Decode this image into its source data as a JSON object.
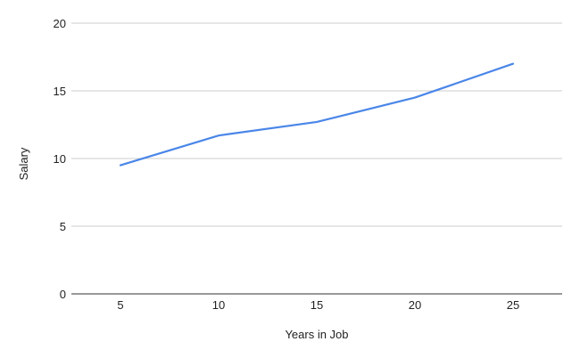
{
  "chart_data": {
    "type": "line",
    "title": "",
    "xlabel": "Years in Job",
    "ylabel": "Salary",
    "x": [
      5,
      10,
      15,
      20,
      25
    ],
    "xticks": [
      "5",
      "10",
      "15",
      "20",
      "25"
    ],
    "xlim": [
      2.5,
      27.5
    ],
    "ylim": [
      0,
      20
    ],
    "yticks": [
      0,
      5,
      10,
      15,
      20
    ],
    "grid": true,
    "legend": "none",
    "series": [
      {
        "values": [
          9.5,
          11.7,
          12.7,
          14.5,
          17.0
        ],
        "color": "#4a86e8"
      }
    ]
  }
}
